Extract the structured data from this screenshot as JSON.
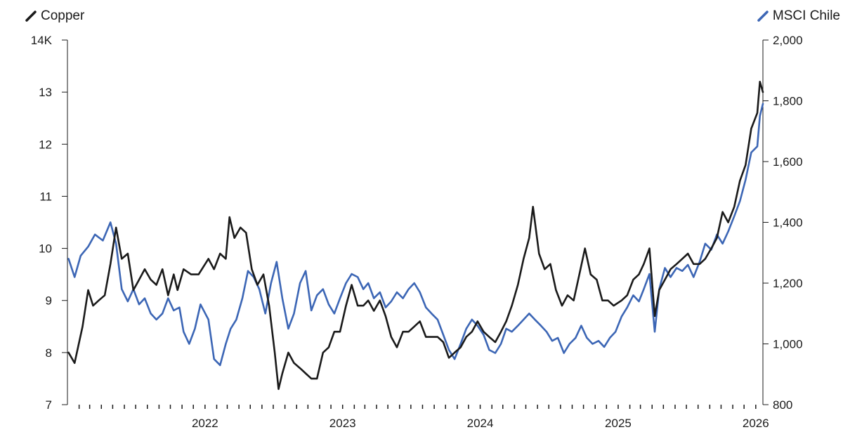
{
  "chart_data": {
    "type": "line",
    "title": "",
    "xlabel": "",
    "series": [
      {
        "name": "Copper",
        "axis": "left",
        "color": "#1a1a1a",
        "points": [
          [
            "2021-01-04",
            8.0
          ],
          [
            "2021-01-20",
            7.8
          ],
          [
            "2021-02-10",
            8.5
          ],
          [
            "2021-02-25",
            9.2
          ],
          [
            "2021-03-10",
            8.9
          ],
          [
            "2021-03-25",
            9.0
          ],
          [
            "2021-04-10",
            9.1
          ],
          [
            "2021-04-25",
            9.7
          ],
          [
            "2021-05-10",
            10.4
          ],
          [
            "2021-05-25",
            9.8
          ],
          [
            "2021-06-10",
            9.9
          ],
          [
            "2021-06-25",
            9.2
          ],
          [
            "2021-07-10",
            9.4
          ],
          [
            "2021-07-25",
            9.6
          ],
          [
            "2021-08-10",
            9.4
          ],
          [
            "2021-08-25",
            9.3
          ],
          [
            "2021-09-10",
            9.6
          ],
          [
            "2021-09-25",
            9.1
          ],
          [
            "2021-10-10",
            9.5
          ],
          [
            "2021-10-20",
            9.2
          ],
          [
            "2021-11-05",
            9.6
          ],
          [
            "2021-11-25",
            9.5
          ],
          [
            "2021-12-15",
            9.5
          ],
          [
            "2022-01-10",
            9.8
          ],
          [
            "2022-01-25",
            9.6
          ],
          [
            "2022-02-10",
            9.9
          ],
          [
            "2022-02-25",
            9.8
          ],
          [
            "2022-03-07",
            10.6
          ],
          [
            "2022-03-20",
            10.2
          ],
          [
            "2022-04-05",
            10.4
          ],
          [
            "2022-04-20",
            10.3
          ],
          [
            "2022-05-05",
            9.6
          ],
          [
            "2022-05-20",
            9.3
          ],
          [
            "2022-06-05",
            9.5
          ],
          [
            "2022-06-20",
            8.9
          ],
          [
            "2022-07-05",
            8.0
          ],
          [
            "2022-07-15",
            7.3
          ],
          [
            "2022-07-25",
            7.6
          ],
          [
            "2022-08-10",
            8.0
          ],
          [
            "2022-08-25",
            7.8
          ],
          [
            "2022-09-10",
            7.7
          ],
          [
            "2022-09-25",
            7.6
          ],
          [
            "2022-10-10",
            7.5
          ],
          [
            "2022-10-25",
            7.5
          ],
          [
            "2022-11-10",
            8.0
          ],
          [
            "2022-11-25",
            8.1
          ],
          [
            "2022-12-10",
            8.4
          ],
          [
            "2022-12-25",
            8.4
          ],
          [
            "2023-01-10",
            8.9
          ],
          [
            "2023-01-25",
            9.3
          ],
          [
            "2023-02-10",
            8.9
          ],
          [
            "2023-02-25",
            8.9
          ],
          [
            "2023-03-10",
            9.0
          ],
          [
            "2023-03-25",
            8.8
          ],
          [
            "2023-04-10",
            9.0
          ],
          [
            "2023-04-25",
            8.7
          ],
          [
            "2023-05-10",
            8.3
          ],
          [
            "2023-05-25",
            8.1
          ],
          [
            "2023-06-10",
            8.4
          ],
          [
            "2023-06-25",
            8.4
          ],
          [
            "2023-07-10",
            8.5
          ],
          [
            "2023-07-25",
            8.6
          ],
          [
            "2023-08-10",
            8.3
          ],
          [
            "2023-08-25",
            8.3
          ],
          [
            "2023-09-10",
            8.3
          ],
          [
            "2023-09-25",
            8.2
          ],
          [
            "2023-10-10",
            7.9
          ],
          [
            "2023-10-25",
            8.0
          ],
          [
            "2023-11-10",
            8.1
          ],
          [
            "2023-11-25",
            8.3
          ],
          [
            "2023-12-10",
            8.4
          ],
          [
            "2023-12-25",
            8.6
          ],
          [
            "2024-01-10",
            8.4
          ],
          [
            "2024-01-25",
            8.3
          ],
          [
            "2024-02-10",
            8.2
          ],
          [
            "2024-02-25",
            8.4
          ],
          [
            "2024-03-10",
            8.6
          ],
          [
            "2024-03-25",
            8.9
          ],
          [
            "2024-04-10",
            9.3
          ],
          [
            "2024-04-25",
            9.8
          ],
          [
            "2024-05-10",
            10.2
          ],
          [
            "2024-05-20",
            10.8
          ],
          [
            "2024-06-05",
            9.9
          ],
          [
            "2024-06-20",
            9.6
          ],
          [
            "2024-07-05",
            9.7
          ],
          [
            "2024-07-20",
            9.2
          ],
          [
            "2024-08-05",
            8.9
          ],
          [
            "2024-08-20",
            9.1
          ],
          [
            "2024-09-05",
            9.0
          ],
          [
            "2024-09-20",
            9.5
          ],
          [
            "2024-10-05",
            10.0
          ],
          [
            "2024-10-20",
            9.5
          ],
          [
            "2024-11-05",
            9.4
          ],
          [
            "2024-11-20",
            9.0
          ],
          [
            "2024-12-05",
            9.0
          ],
          [
            "2024-12-20",
            8.9
          ],
          [
            "2025-01-10",
            9.0
          ],
          [
            "2025-01-25",
            9.1
          ],
          [
            "2025-02-10",
            9.4
          ],
          [
            "2025-02-25",
            9.5
          ],
          [
            "2025-03-10",
            9.7
          ],
          [
            "2025-03-25",
            10.0
          ],
          [
            "2025-04-08",
            8.7
          ],
          [
            "2025-04-20",
            9.2
          ],
          [
            "2025-05-05",
            9.4
          ],
          [
            "2025-05-20",
            9.6
          ],
          [
            "2025-06-05",
            9.7
          ],
          [
            "2025-06-20",
            9.8
          ],
          [
            "2025-07-05",
            9.9
          ],
          [
            "2025-07-20",
            9.7
          ],
          [
            "2025-08-05",
            9.7
          ],
          [
            "2025-08-20",
            9.8
          ],
          [
            "2025-09-05",
            10.0
          ],
          [
            "2025-09-20",
            10.2
          ],
          [
            "2025-10-05",
            10.7
          ],
          [
            "2025-10-20",
            10.5
          ],
          [
            "2025-11-05",
            10.8
          ],
          [
            "2025-11-20",
            11.3
          ],
          [
            "2025-12-05",
            11.6
          ],
          [
            "2025-12-20",
            12.3
          ],
          [
            "2026-01-05",
            12.6
          ],
          [
            "2026-01-12",
            13.2
          ],
          [
            "2026-01-20",
            13.0
          ]
        ]
      },
      {
        "name": "MSCI Chile",
        "axis": "right",
        "color": "#3c66b5",
        "points": [
          [
            "2021-01-04",
            1280
          ],
          [
            "2021-01-20",
            1220
          ],
          [
            "2021-02-05",
            1290
          ],
          [
            "2021-02-25",
            1320
          ],
          [
            "2021-03-15",
            1360
          ],
          [
            "2021-04-05",
            1340
          ],
          [
            "2021-04-25",
            1400
          ],
          [
            "2021-05-10",
            1330
          ],
          [
            "2021-05-25",
            1180
          ],
          [
            "2021-06-10",
            1140
          ],
          [
            "2021-06-25",
            1180
          ],
          [
            "2021-07-10",
            1130
          ],
          [
            "2021-07-25",
            1150
          ],
          [
            "2021-08-10",
            1100
          ],
          [
            "2021-08-25",
            1080
          ],
          [
            "2021-09-10",
            1100
          ],
          [
            "2021-09-25",
            1150
          ],
          [
            "2021-10-10",
            1110
          ],
          [
            "2021-10-25",
            1120
          ],
          [
            "2021-11-05",
            1040
          ],
          [
            "2021-11-20",
            1000
          ],
          [
            "2021-12-05",
            1050
          ],
          [
            "2021-12-20",
            1130
          ],
          [
            "2022-01-10",
            1080
          ],
          [
            "2022-01-25",
            950
          ],
          [
            "2022-02-10",
            930
          ],
          [
            "2022-02-25",
            1000
          ],
          [
            "2022-03-10",
            1050
          ],
          [
            "2022-03-25",
            1080
          ],
          [
            "2022-04-10",
            1150
          ],
          [
            "2022-04-25",
            1240
          ],
          [
            "2022-05-10",
            1220
          ],
          [
            "2022-05-25",
            1180
          ],
          [
            "2022-06-10",
            1100
          ],
          [
            "2022-06-25",
            1200
          ],
          [
            "2022-07-10",
            1270
          ],
          [
            "2022-07-25",
            1150
          ],
          [
            "2022-08-10",
            1050
          ],
          [
            "2022-08-25",
            1100
          ],
          [
            "2022-09-10",
            1200
          ],
          [
            "2022-09-25",
            1240
          ],
          [
            "2022-10-10",
            1110
          ],
          [
            "2022-10-25",
            1160
          ],
          [
            "2022-11-10",
            1180
          ],
          [
            "2022-11-25",
            1130
          ],
          [
            "2022-12-10",
            1100
          ],
          [
            "2022-12-25",
            1150
          ],
          [
            "2023-01-10",
            1200
          ],
          [
            "2023-01-25",
            1230
          ],
          [
            "2023-02-10",
            1220
          ],
          [
            "2023-02-25",
            1180
          ],
          [
            "2023-03-10",
            1200
          ],
          [
            "2023-03-25",
            1150
          ],
          [
            "2023-04-10",
            1170
          ],
          [
            "2023-04-25",
            1120
          ],
          [
            "2023-05-10",
            1140
          ],
          [
            "2023-05-25",
            1170
          ],
          [
            "2023-06-10",
            1150
          ],
          [
            "2023-06-25",
            1180
          ],
          [
            "2023-07-10",
            1200
          ],
          [
            "2023-07-25",
            1170
          ],
          [
            "2023-08-10",
            1120
          ],
          [
            "2023-08-25",
            1100
          ],
          [
            "2023-09-10",
            1080
          ],
          [
            "2023-09-25",
            1030
          ],
          [
            "2023-10-10",
            980
          ],
          [
            "2023-10-25",
            950
          ],
          [
            "2023-11-10",
            1000
          ],
          [
            "2023-11-25",
            1050
          ],
          [
            "2023-12-10",
            1080
          ],
          [
            "2023-12-25",
            1060
          ],
          [
            "2024-01-10",
            1030
          ],
          [
            "2024-01-25",
            980
          ],
          [
            "2024-02-10",
            970
          ],
          [
            "2024-02-25",
            1000
          ],
          [
            "2024-03-10",
            1050
          ],
          [
            "2024-03-25",
            1040
          ],
          [
            "2024-04-10",
            1060
          ],
          [
            "2024-04-25",
            1080
          ],
          [
            "2024-05-10",
            1100
          ],
          [
            "2024-05-25",
            1080
          ],
          [
            "2024-06-10",
            1060
          ],
          [
            "2024-06-25",
            1040
          ],
          [
            "2024-07-10",
            1010
          ],
          [
            "2024-07-25",
            1020
          ],
          [
            "2024-08-10",
            970
          ],
          [
            "2024-08-25",
            1000
          ],
          [
            "2024-09-10",
            1020
          ],
          [
            "2024-09-25",
            1060
          ],
          [
            "2024-10-10",
            1020
          ],
          [
            "2024-10-25",
            1000
          ],
          [
            "2024-11-10",
            1010
          ],
          [
            "2024-11-25",
            990
          ],
          [
            "2024-12-10",
            1020
          ],
          [
            "2024-12-25",
            1040
          ],
          [
            "2025-01-10",
            1090
          ],
          [
            "2025-01-25",
            1120
          ],
          [
            "2025-02-10",
            1160
          ],
          [
            "2025-02-25",
            1140
          ],
          [
            "2025-03-10",
            1180
          ],
          [
            "2025-03-25",
            1230
          ],
          [
            "2025-04-08",
            1040
          ],
          [
            "2025-04-20",
            1180
          ],
          [
            "2025-05-05",
            1250
          ],
          [
            "2025-05-20",
            1220
          ],
          [
            "2025-06-05",
            1250
          ],
          [
            "2025-06-20",
            1240
          ],
          [
            "2025-07-05",
            1260
          ],
          [
            "2025-07-20",
            1220
          ],
          [
            "2025-08-05",
            1270
          ],
          [
            "2025-08-20",
            1330
          ],
          [
            "2025-09-05",
            1310
          ],
          [
            "2025-09-20",
            1360
          ],
          [
            "2025-10-05",
            1330
          ],
          [
            "2025-10-20",
            1370
          ],
          [
            "2025-11-05",
            1420
          ],
          [
            "2025-11-20",
            1470
          ],
          [
            "2025-12-05",
            1540
          ],
          [
            "2025-12-20",
            1630
          ],
          [
            "2026-01-05",
            1650
          ],
          [
            "2026-01-12",
            1750
          ],
          [
            "2026-01-20",
            1790
          ]
        ]
      }
    ],
    "x_ticks": [
      {
        "date": "2022-01-01",
        "label": "2022"
      },
      {
        "date": "2023-01-01",
        "label": "2023"
      },
      {
        "date": "2024-01-01",
        "label": "2024"
      },
      {
        "date": "2025-01-01",
        "label": "2025"
      },
      {
        "date": "2026-01-01",
        "label": "2026"
      }
    ],
    "xlim": [
      "2021-01-01",
      "2026-01-20"
    ],
    "left_axis": {
      "ylim": [
        7,
        14
      ],
      "ticks": [
        {
          "v": 7,
          "label": "7"
        },
        {
          "v": 8,
          "label": "8"
        },
        {
          "v": 9,
          "label": "9"
        },
        {
          "v": 10,
          "label": "10"
        },
        {
          "v": 11,
          "label": "11"
        },
        {
          "v": 12,
          "label": "12"
        },
        {
          "v": 13,
          "label": "13"
        },
        {
          "v": 14,
          "label": "14K"
        }
      ]
    },
    "right_axis": {
      "ylim": [
        800,
        2000
      ],
      "ticks": [
        {
          "v": 800,
          "label": "800"
        },
        {
          "v": 1000,
          "label": "1,000"
        },
        {
          "v": 1200,
          "label": "1,200"
        },
        {
          "v": 1400,
          "label": "1,400"
        },
        {
          "v": 1600,
          "label": "1,600"
        },
        {
          "v": 1800,
          "label": "1,800"
        },
        {
          "v": 2000,
          "label": "2,000"
        }
      ]
    },
    "grid": false,
    "legend": "top"
  }
}
